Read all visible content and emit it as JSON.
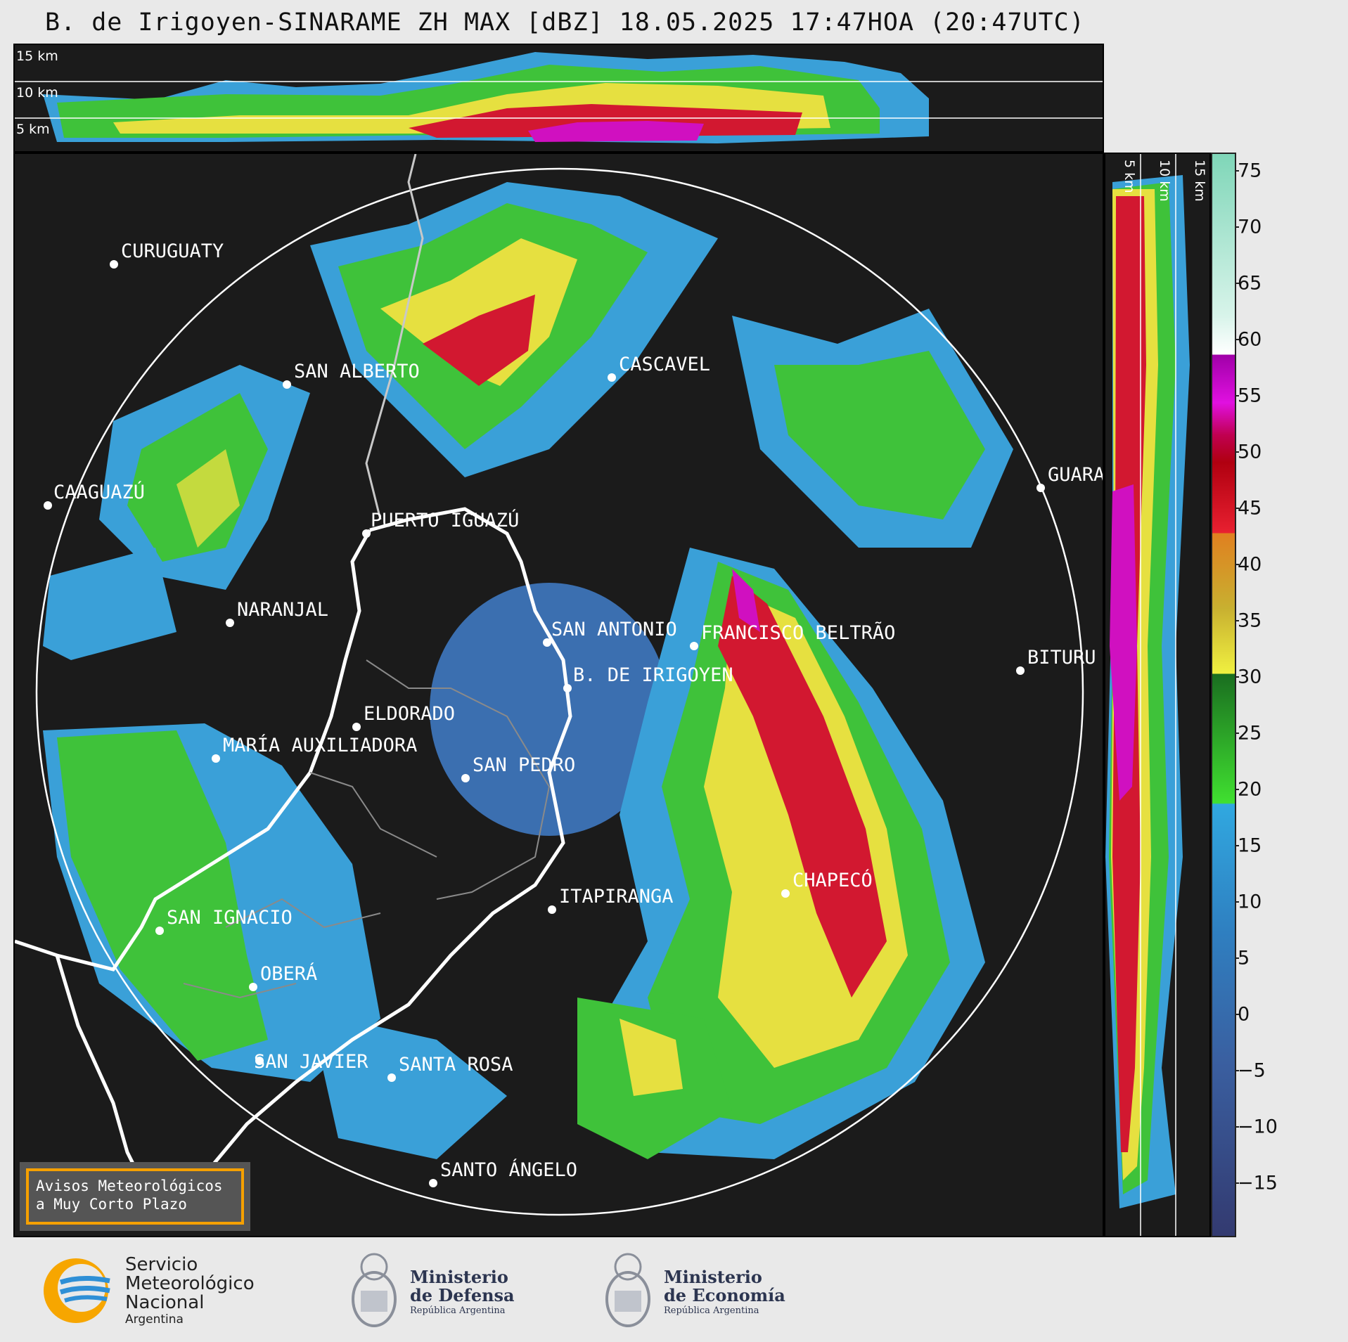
{
  "title": "B. de Irigoyen-SINARAME ZH MAX [dBZ] 18.05.2025 17:47HOA (20:47UTC)",
  "top_panel": {
    "height_labels": [
      "15 km",
      "10 km",
      "5 km"
    ]
  },
  "side_panel": {
    "height_labels": [
      "5 km",
      "10 km",
      "15 km"
    ]
  },
  "colorbar": {
    "ticks": [
      "75",
      "70",
      "65",
      "60",
      "55",
      "50",
      "45",
      "40",
      "35",
      "30",
      "25",
      "20",
      "15",
      "10",
      "5",
      "0",
      "−5",
      "−10",
      "−15"
    ],
    "colors": {
      "blue": "#3aa0d8",
      "green": "#3fc23a",
      "yellow": "#e6e040",
      "orange": "#e08a20",
      "red": "#d21830",
      "magenta": "#d010c0",
      "white": "#ffffff",
      "teal": "#7fd6b8"
    }
  },
  "cities": [
    {
      "name": "CURUGUATY"
    },
    {
      "name": "SAN ALBERTO"
    },
    {
      "name": "CASCAVEL"
    },
    {
      "name": "CAAGUAZÚ"
    },
    {
      "name": "GUARA"
    },
    {
      "name": "PUERTO IGUAZÚ"
    },
    {
      "name": "NARANJAL"
    },
    {
      "name": "SAN ANTONIO"
    },
    {
      "name": "FRANCISCO BELTRÃO"
    },
    {
      "name": "BITURU"
    },
    {
      "name": "B. DE IRIGOYEN"
    },
    {
      "name": "ELDORADO"
    },
    {
      "name": "MARÍA AUXILIADORA"
    },
    {
      "name": "SAN PEDRO"
    },
    {
      "name": "CHAPECÓ"
    },
    {
      "name": "ITAPIRANGA"
    },
    {
      "name": "SAN IGNACIO"
    },
    {
      "name": "OBERÁ"
    },
    {
      "name": "SAN JAVIER"
    },
    {
      "name": "SANTA ROSA"
    },
    {
      "name": "SANTO ÁNGELO"
    }
  ],
  "aviso": {
    "line1": "Avisos Meteorológicos",
    "line2": "a Muy Corto Plazo"
  },
  "logos": {
    "smn": {
      "line1": "Servicio",
      "line2": "Meteorológico",
      "line3": "Nacional",
      "line4": "Argentina"
    },
    "defensa": {
      "line1": "Ministerio",
      "line2": "de Defensa",
      "line3": "República Argentina"
    },
    "economia": {
      "line1": "Ministerio",
      "line2": "de Economía",
      "line3": "República Argentina"
    }
  }
}
